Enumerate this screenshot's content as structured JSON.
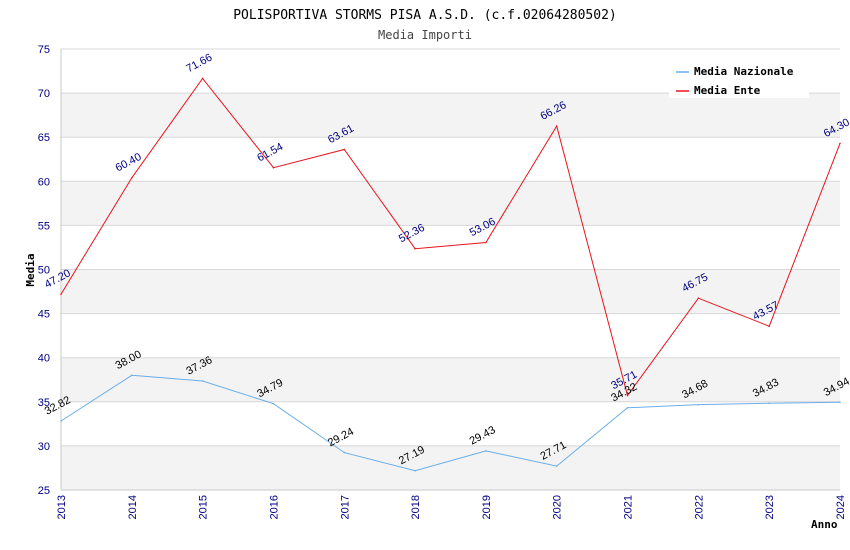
{
  "chart_data": {
    "type": "line",
    "title": "POLISPORTIVA STORMS PISA A.S.D. (c.f.02064280502)",
    "subtitle": "Media Importi",
    "xlabel": "Anno",
    "ylabel": "Media",
    "ylim": [
      25,
      75
    ],
    "yticks": [
      25,
      30,
      35,
      40,
      45,
      50,
      55,
      60,
      65,
      70,
      75
    ],
    "categories": [
      "2013",
      "2014",
      "2015",
      "2016",
      "2017",
      "2018",
      "2019",
      "2020",
      "2021",
      "2022",
      "2023",
      "2024"
    ],
    "grid": true,
    "legend_position": "top-right",
    "series": [
      {
        "name": "Media Nazionale",
        "color": "#6aaee8",
        "label_color": "#000000",
        "values": [
          32.82,
          38.0,
          37.36,
          34.79,
          29.24,
          27.19,
          29.43,
          27.71,
          34.32,
          34.68,
          34.83,
          34.94
        ],
        "labels": [
          "32.82",
          "38.00",
          "37.36",
          "34.79",
          "29.24",
          "27.19",
          "29.43",
          "27.71",
          "34.32",
          "34.68",
          "34.83",
          "34.94"
        ]
      },
      {
        "name": "Media Ente",
        "color": "#e8141c",
        "label_color": "#000080",
        "values": [
          47.2,
          60.4,
          71.66,
          61.54,
          63.61,
          52.36,
          53.06,
          66.26,
          35.71,
          46.75,
          43.57,
          64.3
        ],
        "labels": [
          "47.20",
          "60.40",
          "71.66",
          "61.54",
          "63.61",
          "52.36",
          "53.06",
          "66.26",
          "35.71",
          "46.75",
          "43.57",
          "64.30"
        ]
      }
    ]
  }
}
